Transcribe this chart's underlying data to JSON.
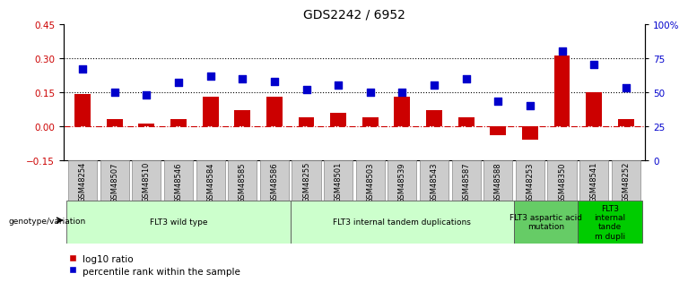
{
  "title": "GDS2242 / 6952",
  "samples": [
    "GSM48254",
    "GSM48507",
    "GSM48510",
    "GSM48546",
    "GSM48584",
    "GSM48585",
    "GSM48586",
    "GSM48255",
    "GSM48501",
    "GSM48503",
    "GSM48539",
    "GSM48543",
    "GSM48587",
    "GSM48588",
    "GSM48253",
    "GSM48350",
    "GSM48541",
    "GSM48252"
  ],
  "log10_ratio": [
    0.14,
    0.03,
    0.01,
    0.03,
    0.13,
    0.07,
    0.13,
    0.04,
    0.06,
    0.04,
    0.13,
    0.07,
    0.04,
    -0.04,
    -0.06,
    0.31,
    0.15,
    0.03
  ],
  "percentile_rank": [
    67,
    50,
    48,
    57,
    62,
    60,
    58,
    52,
    55,
    50,
    50,
    55,
    60,
    43,
    40,
    80,
    70,
    53
  ],
  "ylim_left": [
    -0.15,
    0.45
  ],
  "ylim_right": [
    0,
    100
  ],
  "yticks_left": [
    -0.15,
    0.0,
    0.15,
    0.3,
    0.45
  ],
  "yticks_right": [
    0,
    25,
    50,
    75,
    100
  ],
  "ytick_labels_right": [
    "0",
    "25",
    "50",
    "75",
    "100%"
  ],
  "hlines": [
    0.0,
    0.15,
    0.3
  ],
  "hline_styles": [
    "dashdot",
    "dotted",
    "dotted"
  ],
  "hline_colors": [
    "#cc0000",
    "#000000",
    "#000000"
  ],
  "bar_color": "#cc0000",
  "dot_color": "#0000cc",
  "bar_width": 0.5,
  "dot_size": 28,
  "groups": [
    {
      "label": "FLT3 wild type",
      "start": 0,
      "end": 6,
      "color": "#ccffcc"
    },
    {
      "label": "FLT3 internal tandem duplications",
      "start": 7,
      "end": 13,
      "color": "#ccffcc"
    },
    {
      "label": "FLT3 aspartic acid\nmutation",
      "start": 14,
      "end": 15,
      "color": "#66cc66"
    },
    {
      "label": "FLT3\ninternal\ntande\nm dupli",
      "start": 16,
      "end": 17,
      "color": "#00cc00"
    }
  ],
  "genotype_label": "genotype/variation",
  "legend_items": [
    {
      "label": "log10 ratio",
      "color": "#cc0000",
      "marker": "s"
    },
    {
      "label": "percentile rank within the sample",
      "color": "#0000cc",
      "marker": "s"
    }
  ],
  "bg_color": "#ffffff",
  "tick_area_color": "#cccccc",
  "title_fontsize": 10,
  "axis_fontsize": 7.5
}
